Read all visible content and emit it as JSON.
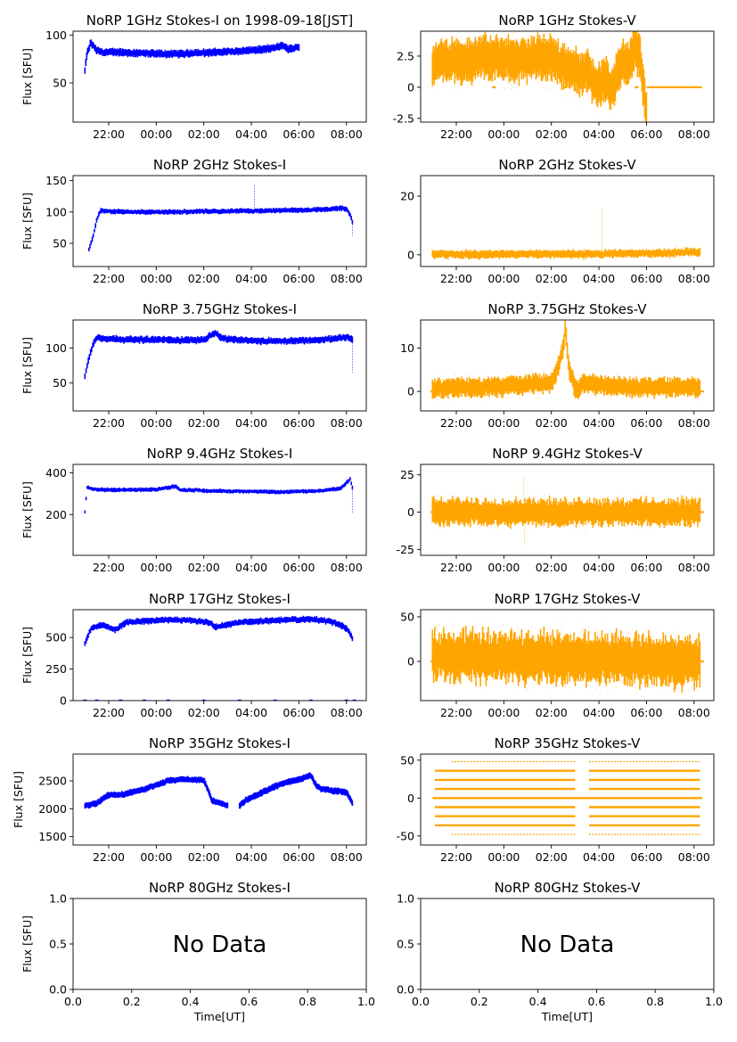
{
  "figure": {
    "stokes_i_color": "#0000ff",
    "stokes_v_color": "#ffa500",
    "no_data_text": "No Data"
  },
  "chart_data": [
    {
      "type": "scatter",
      "title": "NoRP 1GHz Stokes-I on 1998-09-18[JST]",
      "ylabel": "Flux [SFU]",
      "xlabel": "",
      "stokes": "I",
      "color": "#0000ff",
      "x_range": [
        "1998-09-18T20:30",
        "1998-09-19T08:50"
      ],
      "x_ticks": [
        "22:00",
        "00:00",
        "02:00",
        "04:00",
        "06:00",
        "08:00"
      ],
      "ylim": [
        9,
        104
      ],
      "y_ticks": [
        50,
        100
      ],
      "trace": [
        [
          "21:00",
          63
        ],
        [
          "21:05",
          80
        ],
        [
          "21:15",
          92
        ],
        [
          "21:30",
          84
        ],
        [
          "21:45",
          82
        ],
        [
          "22:30",
          82
        ],
        [
          "23:30",
          81
        ],
        [
          "00:30",
          80
        ],
        [
          "01:30",
          81
        ],
        [
          "02:30",
          82
        ],
        [
          "03:30",
          83
        ],
        [
          "04:30",
          85
        ],
        [
          "05:00",
          87
        ],
        [
          "05:20",
          89
        ],
        [
          "05:35",
          85
        ],
        [
          "05:50",
          87
        ],
        [
          "06:00",
          87
        ]
      ],
      "band": 4
    },
    {
      "type": "scatter",
      "title": "NoRP 1GHz Stokes-V",
      "ylabel": "",
      "xlabel": "",
      "stokes": "V",
      "color": "#ffa500",
      "x_range": [
        "1998-09-18T20:30",
        "1998-09-19T08:50"
      ],
      "x_ticks": [
        "22:00",
        "00:00",
        "02:00",
        "04:00",
        "06:00",
        "08:00"
      ],
      "ylim": [
        -2.8,
        4.5
      ],
      "y_ticks": [
        -2.5,
        0.0,
        2.5
      ],
      "trace": [
        [
          "21:00",
          1.8
        ],
        [
          "21:30",
          2.1
        ],
        [
          "22:00",
          2.3
        ],
        [
          "22:30",
          2.0
        ],
        [
          "23:00",
          2.5
        ],
        [
          "23:30",
          2.2
        ],
        [
          "00:00",
          2.4
        ],
        [
          "00:30",
          2.1
        ],
        [
          "01:00",
          2.2
        ],
        [
          "01:30",
          2.4
        ],
        [
          "02:00",
          2.3
        ],
        [
          "02:30",
          1.8
        ],
        [
          "03:00",
          1.4
        ],
        [
          "03:15",
          0.8
        ],
        [
          "03:30",
          1.6
        ],
        [
          "03:45",
          0.5
        ],
        [
          "04:00",
          0.0
        ],
        [
          "04:15",
          0.9
        ],
        [
          "04:30",
          -0.3
        ],
        [
          "04:45",
          1.0
        ],
        [
          "05:00",
          2.1
        ],
        [
          "05:15",
          1.6
        ],
        [
          "05:30",
          3.2
        ],
        [
          "05:45",
          2.4
        ],
        [
          "05:55",
          -1.0
        ],
        [
          "06:00",
          -2.0
        ]
      ],
      "band": 1.7,
      "flat_segments": [
        [
          "06:00",
          "08:20",
          0.0
        ]
      ],
      "dots": [
        [
          "23:35",
          0.0
        ],
        [
          "02:35",
          0.0
        ],
        [
          "05:35",
          0.0
        ]
      ]
    },
    {
      "type": "scatter",
      "title": "NoRP 2GHz Stokes-I",
      "ylabel": "Flux [SFU]",
      "xlabel": "",
      "stokes": "I",
      "color": "#0000ff",
      "x_range": [
        "1998-09-18T20:30",
        "1998-09-19T08:50"
      ],
      "x_ticks": [
        "22:00",
        "00:00",
        "02:00",
        "04:00",
        "06:00",
        "08:00"
      ],
      "ylim": [
        13,
        158
      ],
      "y_ticks": [
        50,
        100,
        150
      ],
      "trace": [
        [
          "21:10",
          40
        ],
        [
          "21:20",
          60
        ],
        [
          "21:30",
          88
        ],
        [
          "21:40",
          103
        ],
        [
          "22:00",
          101
        ],
        [
          "23:00",
          100
        ],
        [
          "00:00",
          100
        ],
        [
          "01:00",
          100
        ],
        [
          "02:00",
          101
        ],
        [
          "03:00",
          101
        ],
        [
          "04:00",
          102
        ],
        [
          "05:00",
          102
        ],
        [
          "06:00",
          103
        ],
        [
          "07:00",
          104
        ],
        [
          "07:45",
          106
        ],
        [
          "08:00",
          105
        ],
        [
          "08:10",
          95
        ],
        [
          "08:15",
          85
        ]
      ],
      "band": 4,
      "spikes": [
        [
          "04:08",
          145
        ],
        [
          "08:15",
          62
        ]
      ]
    },
    {
      "type": "scatter",
      "title": "NoRP 2GHz Stokes-V",
      "ylabel": "",
      "xlabel": "",
      "stokes": "V",
      "color": "#ffa500",
      "x_range": [
        "1998-09-18T20:30",
        "1998-09-19T08:50"
      ],
      "x_ticks": [
        "22:00",
        "00:00",
        "02:00",
        "04:00",
        "06:00",
        "08:00"
      ],
      "ylim": [
        -4,
        27
      ],
      "y_ticks": [
        0,
        20
      ],
      "trace": [
        [
          "21:00",
          0.2
        ],
        [
          "23:00",
          0.1
        ],
        [
          "01:00",
          0.3
        ],
        [
          "03:00",
          0.2
        ],
        [
          "05:00",
          0.4
        ],
        [
          "07:00",
          0.6
        ],
        [
          "08:00",
          1.0
        ],
        [
          "08:15",
          0.8
        ]
      ],
      "band": 1.4,
      "spikes": [
        [
          "04:08",
          16
        ]
      ]
    },
    {
      "type": "scatter",
      "title": "NoRP 3.75GHz Stokes-I",
      "ylabel": "Flux [SFU]",
      "xlabel": "",
      "stokes": "I",
      "color": "#0000ff",
      "x_range": [
        "1998-09-18T20:30",
        "1998-09-19T08:50"
      ],
      "x_ticks": [
        "22:00",
        "00:00",
        "02:00",
        "04:00",
        "06:00",
        "08:00"
      ],
      "ylim": [
        10,
        140
      ],
      "y_ticks": [
        50,
        100
      ],
      "trace": [
        [
          "21:00",
          60
        ],
        [
          "21:10",
          85
        ],
        [
          "21:20",
          105
        ],
        [
          "21:30",
          115
        ],
        [
          "22:00",
          113
        ],
        [
          "23:00",
          112
        ],
        [
          "00:00",
          112
        ],
        [
          "01:00",
          111
        ],
        [
          "02:00",
          112
        ],
        [
          "02:30",
          122
        ],
        [
          "02:45",
          114
        ],
        [
          "03:30",
          111
        ],
        [
          "04:30",
          110
        ],
        [
          "05:30",
          110
        ],
        [
          "06:30",
          111
        ],
        [
          "07:30",
          113
        ],
        [
          "08:00",
          116
        ],
        [
          "08:15",
          112
        ]
      ],
      "band": 5,
      "spikes": [
        [
          "08:15",
          65
        ]
      ]
    },
    {
      "type": "scatter",
      "title": "NoRP 3.75GHz Stokes-V",
      "ylabel": "",
      "xlabel": "",
      "stokes": "V",
      "color": "#ffa500",
      "x_range": [
        "1998-09-18T20:30",
        "1998-09-19T08:50"
      ],
      "x_ticks": [
        "22:00",
        "00:00",
        "02:00",
        "04:00",
        "06:00",
        "08:00"
      ],
      "ylim": [
        -4.5,
        16.5
      ],
      "y_ticks": [
        0,
        10
      ],
      "trace": [
        [
          "21:00",
          0.5
        ],
        [
          "22:00",
          1.0
        ],
        [
          "23:00",
          1.0
        ],
        [
          "00:00",
          1.2
        ],
        [
          "01:00",
          1.5
        ],
        [
          "02:00",
          2.0
        ],
        [
          "02:15",
          5.0
        ],
        [
          "02:30",
          10.0
        ],
        [
          "02:35",
          14.5
        ],
        [
          "02:45",
          5.0
        ],
        [
          "03:00",
          0.5
        ],
        [
          "03:30",
          2.0
        ],
        [
          "04:00",
          1.5
        ],
        [
          "05:00",
          1.0
        ],
        [
          "06:00",
          1.0
        ],
        [
          "07:00",
          1.0
        ],
        [
          "08:15",
          1.0
        ]
      ],
      "band": 2.2,
      "flat_segments": [
        [
          "20:55",
          "21:05",
          0.0
        ],
        [
          "08:15",
          "08:25",
          0.0
        ]
      ]
    },
    {
      "type": "scatter",
      "title": "NoRP 9.4GHz Stokes-I",
      "ylabel": "Flux [SFU]",
      "xlabel": "",
      "stokes": "I",
      "color": "#0000ff",
      "x_range": [
        "1998-09-18T20:30",
        "1998-09-19T08:50"
      ],
      "x_ticks": [
        "22:00",
        "00:00",
        "02:00",
        "04:00",
        "06:00",
        "08:00"
      ],
      "ylim": [
        5,
        440
      ],
      "y_ticks": [
        200,
        400
      ],
      "trace": [
        [
          "21:00",
          210
        ],
        [
          "21:05",
          330
        ],
        [
          "21:30",
          320
        ],
        [
          "22:00",
          318
        ],
        [
          "23:00",
          318
        ],
        [
          "00:00",
          320
        ],
        [
          "00:50",
          335
        ],
        [
          "01:00",
          318
        ],
        [
          "02:00",
          315
        ],
        [
          "03:00",
          312
        ],
        [
          "04:00",
          310
        ],
        [
          "05:00",
          308
        ],
        [
          "06:00",
          310
        ],
        [
          "07:00",
          315
        ],
        [
          "07:45",
          325
        ],
        [
          "08:10",
          370
        ],
        [
          "08:15",
          330
        ]
      ],
      "band": 10,
      "spikes": [
        [
          "08:15",
          210
        ]
      ]
    },
    {
      "type": "scatter",
      "title": "NoRP 9.4GHz Stokes-V",
      "ylabel": "",
      "xlabel": "",
      "stokes": "V",
      "color": "#ffa500",
      "x_range": [
        "1998-09-18T20:30",
        "1998-09-19T08:50"
      ],
      "x_ticks": [
        "22:00",
        "00:00",
        "02:00",
        "04:00",
        "06:00",
        "08:00"
      ],
      "ylim": [
        -29,
        32
      ],
      "y_ticks": [
        -25,
        0,
        25
      ],
      "trace": [
        [
          "21:00",
          0
        ],
        [
          "23:00",
          0
        ],
        [
          "01:00",
          0
        ],
        [
          "03:00",
          0
        ],
        [
          "05:00",
          0
        ],
        [
          "07:00",
          0
        ],
        [
          "08:15",
          0
        ]
      ],
      "band": 9,
      "spikes": [
        [
          "00:50",
          24
        ],
        [
          "00:52",
          -22
        ]
      ],
      "flat_segments": [
        [
          "20:55",
          "21:05",
          0.0
        ],
        [
          "08:15",
          "08:25",
          0.0
        ]
      ]
    },
    {
      "type": "scatter",
      "title": "NoRP 17GHz Stokes-I",
      "ylabel": "Flux [SFU]",
      "xlabel": "",
      "stokes": "I",
      "color": "#0000ff",
      "x_range": [
        "1998-09-18T20:30",
        "1998-09-19T08:50"
      ],
      "x_ticks": [
        "22:00",
        "00:00",
        "02:00",
        "04:00",
        "06:00",
        "08:00"
      ],
      "ylim": [
        0,
        720
      ],
      "y_ticks": [
        0,
        250,
        500
      ],
      "trace": [
        [
          "21:00",
          450
        ],
        [
          "21:15",
          570
        ],
        [
          "21:45",
          600
        ],
        [
          "22:15",
          560
        ],
        [
          "22:45",
          620
        ],
        [
          "23:30",
          630
        ],
        [
          "00:30",
          640
        ],
        [
          "01:30",
          635
        ],
        [
          "02:15",
          620
        ],
        [
          "02:30",
          580
        ],
        [
          "03:00",
          600
        ],
        [
          "03:30",
          620
        ],
        [
          "04:30",
          630
        ],
        [
          "05:30",
          640
        ],
        [
          "06:30",
          645
        ],
        [
          "07:15",
          630
        ],
        [
          "07:45",
          600
        ],
        [
          "08:05",
          560
        ],
        [
          "08:15",
          490
        ]
      ],
      "band": 25,
      "dots": [
        [
          "21:00",
          0
        ],
        [
          "21:30",
          0
        ],
        [
          "22:30",
          0
        ],
        [
          "23:30",
          0
        ],
        [
          "00:30",
          0
        ],
        [
          "02:00",
          0
        ],
        [
          "03:30",
          0
        ],
        [
          "05:00",
          0
        ],
        [
          "06:30",
          0
        ],
        [
          "08:00",
          0
        ],
        [
          "08:20",
          0
        ]
      ]
    },
    {
      "type": "scatter",
      "title": "NoRP 17GHz Stokes-V",
      "ylabel": "",
      "xlabel": "",
      "stokes": "V",
      "color": "#ffa500",
      "x_range": [
        "1998-09-18T20:30",
        "1998-09-19T08:50"
      ],
      "x_ticks": [
        "22:00",
        "00:00",
        "02:00",
        "04:00",
        "06:00",
        "08:00"
      ],
      "ylim": [
        -44,
        58
      ],
      "y_ticks": [
        0,
        50
      ],
      "trace": [
        [
          "21:00",
          6
        ],
        [
          "23:00",
          6
        ],
        [
          "01:00",
          5
        ],
        [
          "03:00",
          4
        ],
        [
          "05:00",
          2
        ],
        [
          "07:00",
          0
        ],
        [
          "08:15",
          -2
        ]
      ],
      "band": 28,
      "flat_segments": [
        [
          "20:55",
          "21:05",
          0.0
        ],
        [
          "08:15",
          "08:25",
          0.0
        ]
      ]
    },
    {
      "type": "scatter",
      "title": "NoRP 35GHz Stokes-I",
      "ylabel": "Flux [SFU]",
      "xlabel": "",
      "stokes": "I",
      "color": "#0000ff",
      "x_range": [
        "1998-09-18T20:30",
        "1998-09-19T08:50"
      ],
      "x_ticks": [
        "22:00",
        "00:00",
        "02:00",
        "04:00",
        "06:00",
        "08:00"
      ],
      "ylim": [
        1350,
        2980
      ],
      "y_ticks": [
        1500,
        2000,
        2500
      ],
      "trace": [
        [
          "21:00",
          2050
        ],
        [
          "21:30",
          2100
        ],
        [
          "22:00",
          2250
        ],
        [
          "22:30",
          2250
        ],
        [
          "23:00",
          2300
        ],
        [
          "23:30",
          2350
        ],
        [
          "00:00",
          2420
        ],
        [
          "00:30",
          2500
        ],
        [
          "01:00",
          2530
        ],
        [
          "01:30",
          2520
        ],
        [
          "02:00",
          2520
        ],
        [
          "02:10",
          2350
        ],
        [
          "02:20",
          2150
        ],
        [
          "02:40",
          2100
        ],
        [
          "03:00",
          2050
        ]
      ],
      "trace2": [
        [
          "03:30",
          2050
        ],
        [
          "03:45",
          2150
        ],
        [
          "04:00",
          2200
        ],
        [
          "04:30",
          2300
        ],
        [
          "05:00",
          2400
        ],
        [
          "05:30",
          2480
        ],
        [
          "06:00",
          2520
        ],
        [
          "06:30",
          2600
        ],
        [
          "06:45",
          2400
        ],
        [
          "07:00",
          2350
        ],
        [
          "07:30",
          2320
        ],
        [
          "08:00",
          2300
        ],
        [
          "08:15",
          2100
        ]
      ],
      "band": 55
    },
    {
      "type": "scatter",
      "title": "NoRP 35GHz Stokes-V",
      "ylabel": "",
      "xlabel": "",
      "stokes": "V",
      "color": "#ffa500",
      "x_range": [
        "1998-09-18T20:30",
        "1998-09-19T08:50"
      ],
      "x_ticks": [
        "22:00",
        "00:00",
        "02:00",
        "04:00",
        "06:00",
        "08:00"
      ],
      "ylim": [
        -62,
        58
      ],
      "y_ticks": [
        -50,
        0,
        50
      ],
      "levels": [
        48,
        36,
        24,
        12,
        0,
        -12,
        -24,
        -36,
        -48
      ],
      "full_levels": [
        0
      ],
      "gap": [
        "03:00",
        "03:35"
      ]
    },
    {
      "type": "scatter",
      "title": "NoRP 80GHz Stokes-I",
      "ylabel": "Flux [SFU]",
      "xlabel": "Time[UT]",
      "stokes": "I",
      "no_data": true,
      "xlim": [
        0,
        1
      ],
      "ylim": [
        0,
        1
      ],
      "x_ticks": [
        "0.0",
        "0.2",
        "0.4",
        "0.6",
        "0.8",
        "1.0"
      ],
      "y_ticks": [
        "0.0",
        "0.5",
        "1.0"
      ]
    },
    {
      "type": "scatter",
      "title": "NoRP 80GHz Stokes-V",
      "ylabel": "",
      "xlabel": "Time[UT]",
      "stokes": "V",
      "no_data": true,
      "xlim": [
        0,
        1
      ],
      "ylim": [
        0,
        1
      ],
      "x_ticks": [
        "0.0",
        "0.2",
        "0.4",
        "0.6",
        "0.8",
        "1.0"
      ],
      "y_ticks": [
        "0.0",
        "0.5",
        "1.0"
      ]
    }
  ]
}
